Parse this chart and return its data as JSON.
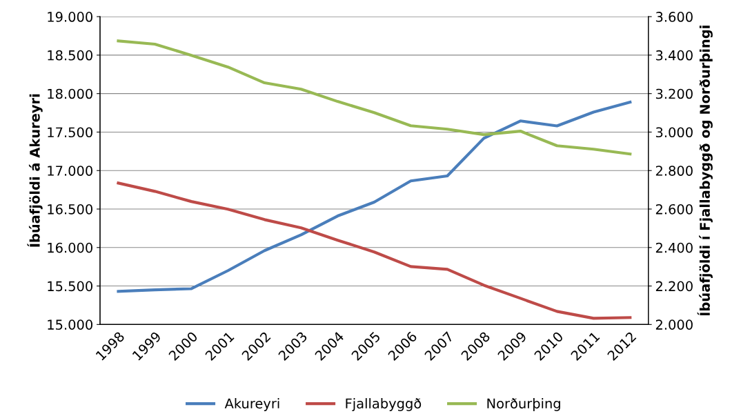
{
  "chart_data": {
    "type": "line",
    "ylabel": "Íbúafjöldi á Akureyri",
    "y2label": "Íbúafjöldi í Fjallabyggð og Norðurþingi",
    "categories": [
      "1998",
      "1999",
      "2000",
      "2001",
      "2002",
      "2003",
      "2004",
      "2005",
      "2006",
      "2007",
      "2008",
      "2009",
      "2010",
      "2011",
      "2012"
    ],
    "series": [
      {
        "name": "Akureyri",
        "color": "#4a7ebb",
        "values": [
          15430,
          15450,
          15465,
          15700,
          15960,
          16165,
          16410,
          16590,
          16865,
          16930,
          17420,
          17645,
          17580,
          17760,
          17890
        ]
      },
      {
        "name": "Fjallabyggð",
        "color": "#be4b48",
        "axis": "y2",
        "values": [
          2735,
          2692,
          2639,
          2599,
          2545,
          2502,
          2438,
          2377,
          2301,
          2287,
          2204,
          2136,
          2068,
          2032,
          2036
        ]
      },
      {
        "name": "Norðurþing",
        "color": "#98b954",
        "axis": "y2",
        "values": [
          3474,
          3457,
          3399,
          3338,
          3256,
          3223,
          3159,
          3101,
          3033,
          3015,
          2987,
          3005,
          2929,
          2911,
          2886
        ]
      }
    ],
    "ylim": [
      15000,
      19000
    ],
    "yticks": [
      {
        "value": 15000,
        "label": "15.000"
      },
      {
        "value": 15500,
        "label": "15.500"
      },
      {
        "value": 16000,
        "label": "16.000"
      },
      {
        "value": 16500,
        "label": "16.500"
      },
      {
        "value": 17000,
        "label": "17.000"
      },
      {
        "value": 17500,
        "label": "17.500"
      },
      {
        "value": 18000,
        "label": "18.000"
      },
      {
        "value": 18500,
        "label": "18.500"
      },
      {
        "value": 19000,
        "label": "19.000"
      }
    ],
    "y2lim": [
      2000,
      3600
    ],
    "y2ticks": [
      {
        "value": 2000,
        "label": "2.000"
      },
      {
        "value": 2200,
        "label": "2.200"
      },
      {
        "value": 2400,
        "label": "2.400"
      },
      {
        "value": 2600,
        "label": "2.600"
      },
      {
        "value": 2800,
        "label": "2.800"
      },
      {
        "value": 3000,
        "label": "3.000"
      },
      {
        "value": 3200,
        "label": "3.200"
      },
      {
        "value": 3400,
        "label": "3.400"
      },
      {
        "value": 3600,
        "label": "3.600"
      }
    ],
    "grid": "y",
    "legend": "bottom",
    "marker": "none",
    "line_style": "solid"
  }
}
